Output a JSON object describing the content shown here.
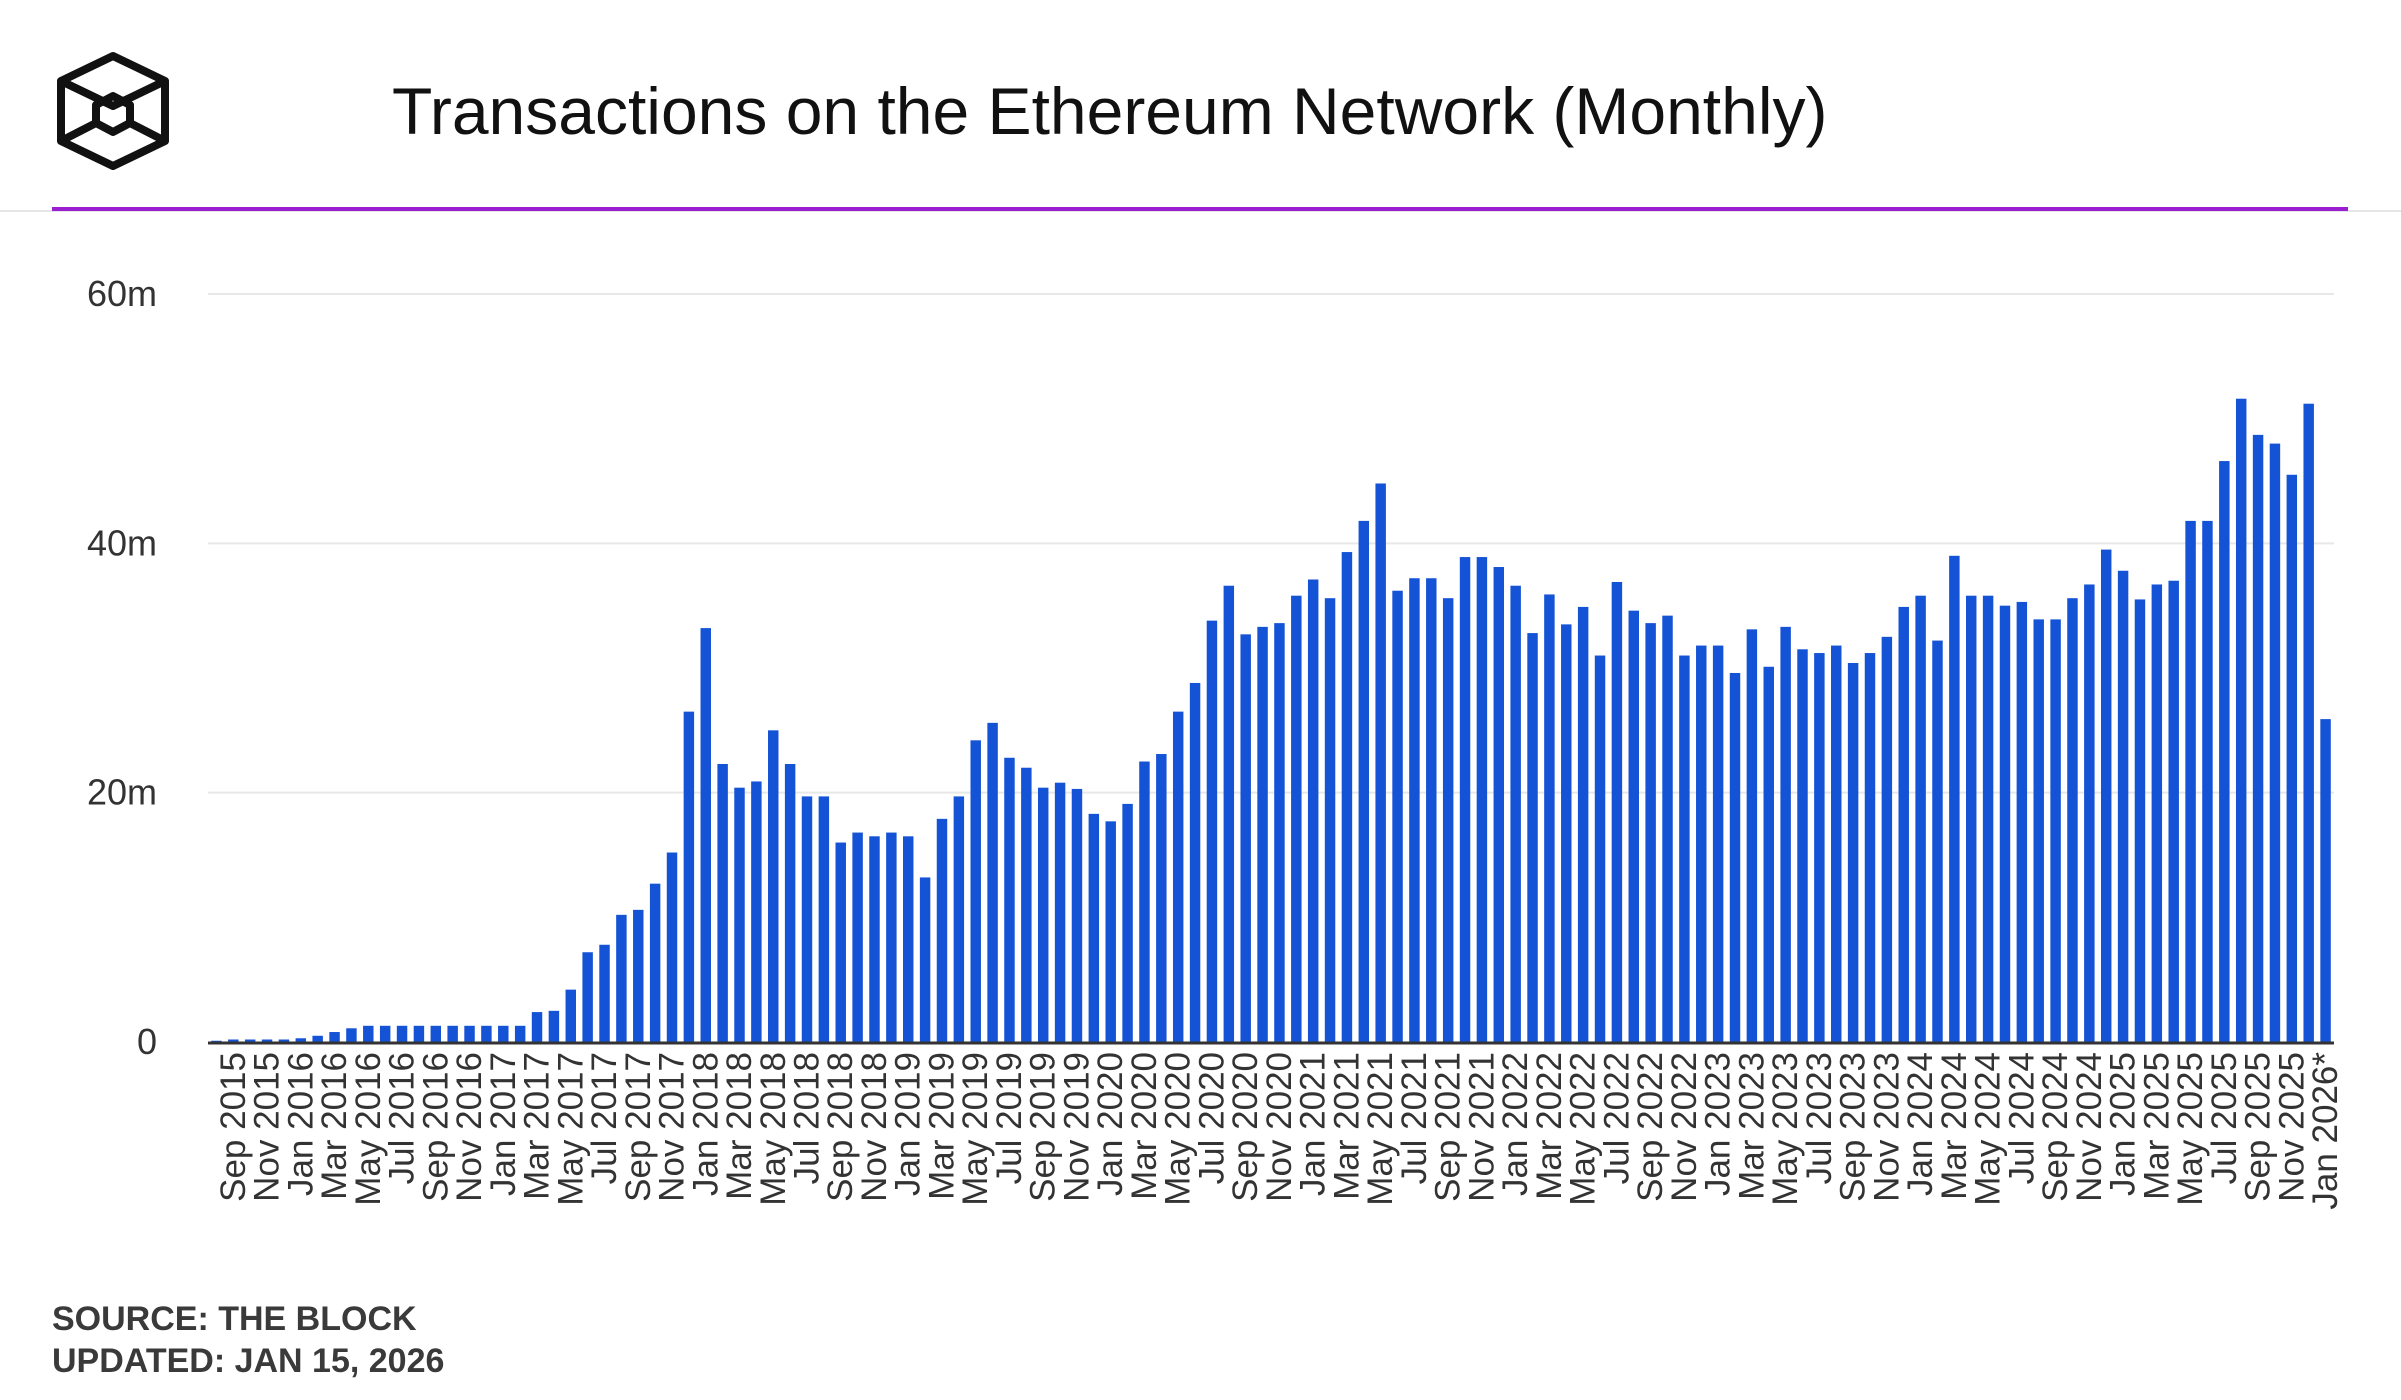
{
  "header": {
    "title": "Transactions on the Ethereum Network (Monthly)",
    "logo_icon": "the-block-cube-logo"
  },
  "footer": {
    "source": "SOURCE: THE BLOCK",
    "updated": "UPDATED: JAN 15, 2026"
  },
  "colors": {
    "bar": "#1553d6",
    "accent_rule": "#9b1fd1",
    "grid": "#e8e8e8",
    "axis": "#333333",
    "text": "#111111"
  },
  "chart_data": {
    "type": "bar",
    "title": "Transactions on the Ethereum Network (Monthly)",
    "xlabel": "",
    "ylabel": "",
    "ylim": [
      0,
      60000000
    ],
    "grid": true,
    "yticks": [
      {
        "value": 0,
        "label": "0"
      },
      {
        "value": 20000000,
        "label": "20m"
      },
      {
        "value": 40000000,
        "label": "40m"
      },
      {
        "value": 60000000,
        "label": "60m"
      }
    ],
    "categories": [
      "Aug 2015",
      "Sep 2015",
      "Oct 2015",
      "Nov 2015",
      "Dec 2015",
      "Jan 2016",
      "Feb 2016",
      "Mar 2016",
      "Apr 2016",
      "May 2016",
      "Jun 2016",
      "Jul 2016",
      "Aug 2016",
      "Sep 2016",
      "Oct 2016",
      "Nov 2016",
      "Dec 2016",
      "Jan 2017",
      "Feb 2017",
      "Mar 2017",
      "Apr 2017",
      "May 2017",
      "Jun 2017",
      "Jul 2017",
      "Aug 2017",
      "Sep 2017",
      "Oct 2017",
      "Nov 2017",
      "Dec 2017",
      "Jan 2018",
      "Feb 2018",
      "Mar 2018",
      "Apr 2018",
      "May 2018",
      "Jun 2018",
      "Jul 2018",
      "Aug 2018",
      "Sep 2018",
      "Oct 2018",
      "Nov 2018",
      "Dec 2018",
      "Jan 2019",
      "Feb 2019",
      "Mar 2019",
      "Apr 2019",
      "May 2019",
      "Jun 2019",
      "Jul 2019",
      "Aug 2019",
      "Sep 2019",
      "Oct 2019",
      "Nov 2019",
      "Dec 2019",
      "Jan 2020",
      "Feb 2020",
      "Mar 2020",
      "Apr 2020",
      "May 2020",
      "Jun 2020",
      "Jul 2020",
      "Aug 2020",
      "Sep 2020",
      "Oct 2020",
      "Nov 2020",
      "Dec 2020",
      "Jan 2021",
      "Feb 2021",
      "Mar 2021",
      "Apr 2021",
      "May 2021",
      "Jun 2021",
      "Jul 2021",
      "Aug 2021",
      "Sep 2021",
      "Oct 2021",
      "Nov 2021",
      "Dec 2021",
      "Jan 2022",
      "Feb 2022",
      "Mar 2022",
      "Apr 2022",
      "May 2022",
      "Jun 2022",
      "Jul 2022",
      "Aug 2022",
      "Sep 2022",
      "Oct 2022",
      "Nov 2022",
      "Dec 2022",
      "Jan 2023",
      "Feb 2023",
      "Mar 2023",
      "Apr 2023",
      "May 2023",
      "Jun 2023",
      "Jul 2023",
      "Aug 2023",
      "Sep 2023",
      "Oct 2023",
      "Nov 2023",
      "Dec 2023",
      "Jan 2024",
      "Feb 2024",
      "Mar 2024",
      "Apr 2024",
      "May 2024",
      "Jun 2024",
      "Jul 2024",
      "Aug 2024",
      "Sep 2024",
      "Oct 2024",
      "Nov 2024",
      "Dec 2024",
      "Jan 2025",
      "Feb 2025",
      "Mar 2025",
      "Apr 2025",
      "May 2025",
      "Jun 2025",
      "Jul 2025",
      "Aug 2025",
      "Sep 2025",
      "Oct 2025",
      "Nov 2025",
      "Dec 2025",
      "Jan 2026*"
    ],
    "tick_labels": [
      "Sep 2015",
      "Nov 2015",
      "Jan 2016",
      "Mar 2016",
      "May 2016",
      "Jul 2016",
      "Sep 2016",
      "Nov 2016",
      "Jan 2017",
      "Mar 2017",
      "May 2017",
      "Jul 2017",
      "Sep 2017",
      "Nov 2017",
      "Jan 2018",
      "Mar 2018",
      "May 2018",
      "Jul 2018",
      "Sep 2018",
      "Nov 2018",
      "Jan 2019",
      "Mar 2019",
      "May 2019",
      "Jul 2019",
      "Sep 2019",
      "Nov 2019",
      "Jan 2020",
      "Mar 2020",
      "May 2020",
      "Jul 2020",
      "Sep 2020",
      "Nov 2020",
      "Jan 2021",
      "Mar 2021",
      "May 2021",
      "Jul 2021",
      "Sep 2021",
      "Nov 2021",
      "Jan 2022",
      "Mar 2022",
      "May 2022",
      "Jul 2022",
      "Sep 2022",
      "Nov 2022",
      "Jan 2023",
      "Mar 2023",
      "May 2023",
      "Jul 2023",
      "Sep 2023",
      "Nov 2023",
      "Jan 2024",
      "Mar 2024",
      "May 2024",
      "Jul 2024",
      "Sep 2024",
      "Nov 2024",
      "Jan 2025",
      "Mar 2025",
      "May 2025",
      "Jul 2025",
      "Sep 2025",
      "Nov 2025",
      "Jan 2026*"
    ],
    "series": [
      {
        "name": "Transactions",
        "values": [
          100000,
          200000,
          200000,
          200000,
          200000,
          300000,
          500000,
          800000,
          1100000,
          1300000,
          1300000,
          1300000,
          1300000,
          1300000,
          1300000,
          1300000,
          1300000,
          1300000,
          1300000,
          2400000,
          2500000,
          4200000,
          7200000,
          7800000,
          10200000,
          10600000,
          12700000,
          15200000,
          26500000,
          33200000,
          22300000,
          20400000,
          20900000,
          25000000,
          22300000,
          19700000,
          19700000,
          16000000,
          16800000,
          16500000,
          16800000,
          16500000,
          13200000,
          17900000,
          19700000,
          24200000,
          25600000,
          22800000,
          22000000,
          20400000,
          20800000,
          20300000,
          18300000,
          17700000,
          19100000,
          22500000,
          23100000,
          26500000,
          28800000,
          33800000,
          36600000,
          32700000,
          33300000,
          33600000,
          35800000,
          37100000,
          35600000,
          39300000,
          41800000,
          44800000,
          36200000,
          37200000,
          37200000,
          35600000,
          38900000,
          38900000,
          38100000,
          36600000,
          32800000,
          35900000,
          33500000,
          34900000,
          31000000,
          36900000,
          34600000,
          33600000,
          34200000,
          31000000,
          31800000,
          31800000,
          29600000,
          33100000,
          30100000,
          33300000,
          31500000,
          31200000,
          31800000,
          30400000,
          31200000,
          32500000,
          34900000,
          35800000,
          32200000,
          39000000,
          35800000,
          35800000,
          35000000,
          35300000,
          33900000,
          33900000,
          35600000,
          36700000,
          39500000,
          37800000,
          35500000,
          36700000,
          37000000,
          41800000,
          41800000,
          46600000,
          51600000,
          48700000,
          48000000,
          45500000,
          51200000,
          25900000
        ]
      }
    ]
  }
}
